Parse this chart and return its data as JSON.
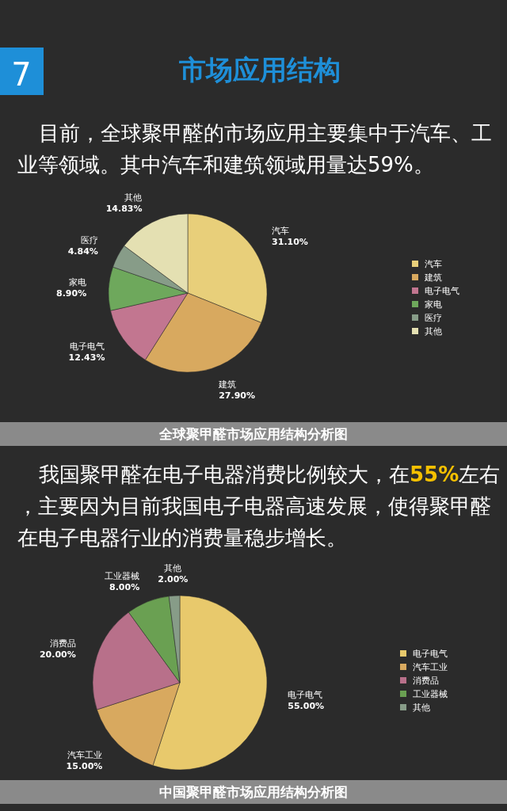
{
  "chart_data": [
    {
      "type": "pie",
      "title": "市场应用结构",
      "annotations": [
        "7",
        "目前，全球聚甲醛的市场应用主要集中于汽车、工业等领域。其中汽车和建筑领域用量达59%。",
        "全球聚甲醛市场应用结构分析图"
      ],
      "categories": [
        "汽车",
        "建筑",
        "电子电气",
        "家电",
        "医疗",
        "其他"
      ],
      "values": [
        31.1,
        27.9,
        12.43,
        8.9,
        4.84,
        14.83
      ],
      "value_labels": [
        "31.10%",
        "27.90%",
        "12.43%",
        "8.90%",
        "4.84%",
        "14.83%"
      ],
      "colors": [
        "#e8cf7a",
        "#d8a95f",
        "#c27690",
        "#6ea85c",
        "#879c88",
        "#e4e0b2"
      ],
      "legend": "right"
    },
    {
      "type": "pie",
      "annotations": [
        "我国聚甲醛在电子电器消费比例较大，在",
        "55%",
        "左右，主要因为目前我国电子电器高速发展，使得聚甲醛在电子电器行业的消费量稳步增长。",
        "中国聚甲醛市场应用结构分析图"
      ],
      "categories": [
        "电子电气",
        "汽车工业",
        "消费品",
        "工业器械",
        "其他"
      ],
      "values": [
        55.0,
        15.0,
        20.0,
        8.0,
        2.0
      ],
      "value_labels": [
        "55.00%",
        "15.00%",
        "20.00%",
        "8.00%",
        "2.00%"
      ],
      "colors": [
        "#e8c96c",
        "#d8a95f",
        "#b8708a",
        "#6aa052",
        "#879c88"
      ],
      "legend": "right"
    }
  ]
}
